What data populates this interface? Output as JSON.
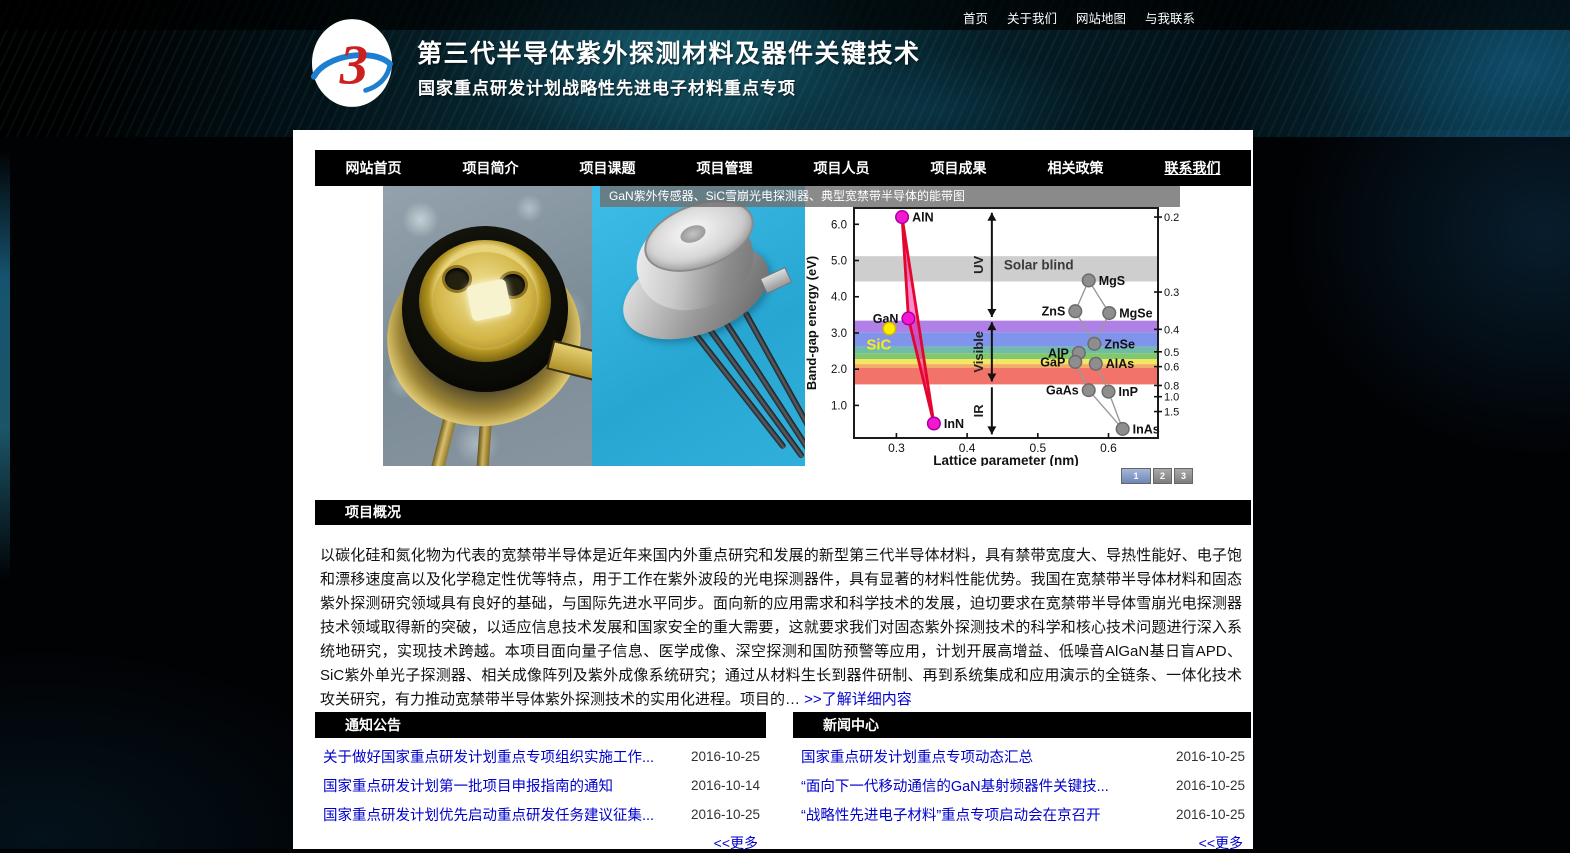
{
  "topbar": {
    "links": [
      "首页",
      "关于我们",
      "网站地图",
      "与我联系"
    ]
  },
  "header": {
    "logo_text": "3",
    "title": "第三代半导体紫外探测材料及器件关键技术",
    "subtitle": "国家重点研发计划战略性先进电子材料重点专项"
  },
  "nav": {
    "items": [
      "网站首页",
      "项目简介",
      "项目课题",
      "项目管理",
      "项目人员",
      "项目成果",
      "相关政策",
      "联系我们"
    ]
  },
  "banner": {
    "caption": "GaN紫外传感器、SiC雪崩光电探测器、典型宽禁带半导体的能带图",
    "pager": [
      "1",
      "2",
      "3"
    ]
  },
  "overview": {
    "heading": "项目概况",
    "paragraph": "以碳化硅和氮化物为代表的宽禁带半导体是近年来国内外重点研究和发展的新型第三代半导体材料，具有禁带宽度大、导热性能好、电子饱和漂移速度高以及化学稳定性优等特点，用于工作在紫外波段的光电探测器件，具有显著的材料性能优势。我国在宽禁带半导体材料和固态紫外探测研究领域具有良好的基础，与国际先进水平同步。面向新的应用需求和科学技术的发展，迫切要求在宽禁带半导体雪崩光电探测器技术领域取得新的突破，以适应信息技术发展和国家安全的重大需要，这就要求我们对固态紫外探测技术的科学和核心技术问题进行深入系统地研究，实现技术跨越。本项目面向量子信息、医学成像、深空探测和国防预警等应用，计划开展高增益、低噪音AlGaN基日盲APD、SiC紫外单光子探测器、相关成像阵列及紫外成像系统研究；通过从材料生长到器件研制、再到系统集成和应用演示的全链条、一体化技术攻关研究，有力推动宽禁带半导体紫外探测技术的实用化进程。项目的… ",
    "more_label": ">>了解详细内容"
  },
  "notices": {
    "heading": "通知公告",
    "items": [
      {
        "title": "关于做好国家重点研发计划重点专项组织实施工作...",
        "date": "2016-10-25"
      },
      {
        "title": "国家重点研发计划第一批项目申报指南的通知",
        "date": "2016-10-14"
      },
      {
        "title": "国家重点研发计划优先启动重点研发任务建议征集...",
        "date": "2016-10-25"
      }
    ],
    "more_label": "<<更多"
  },
  "news": {
    "heading": "新闻中心",
    "items": [
      {
        "title": "国家重点研发计划重点专项动态汇总",
        "date": "2016-10-25"
      },
      {
        "title": "“面向下一代移动通信的GaN基射频器件关键技...",
        "date": "2016-10-25"
      },
      {
        "title": "“战略性先进电子材料”重点专项启动会在京召开",
        "date": "2016-10-25"
      }
    ],
    "more_label": "<<更多"
  },
  "chart_data": {
    "type": "scatter",
    "title": "",
    "xlabel": "Lattice parameter (nm)",
    "ylabel": "Band-gap energy (eV)",
    "xlim": [
      0.24,
      0.67
    ],
    "ylim": [
      0.1,
      6.45
    ],
    "x_ticks": [
      0.3,
      0.4,
      0.5,
      0.6
    ],
    "y_ticks": [
      1.0,
      2.0,
      3.0,
      4.0,
      5.0,
      6.0
    ],
    "right_ticks": [
      {
        "label": "0.2",
        "energy": 6.2
      },
      {
        "label": "0.3",
        "energy": 4.13
      },
      {
        "label": "0.4",
        "energy": 3.1
      },
      {
        "label": "0.5",
        "energy": 2.48
      },
      {
        "label": "0.6",
        "energy": 2.07
      },
      {
        "label": "0.8",
        "energy": 1.55
      },
      {
        "label": "1.0",
        "energy": 1.24
      },
      {
        "label": "1.5",
        "energy": 0.83
      }
    ],
    "bands": [
      {
        "label": "Solar blind band",
        "y0": 4.42,
        "y1": 5.12,
        "color": "#c7c7c7"
      },
      {
        "label": "violet",
        "y0": 3.02,
        "y1": 3.34,
        "color": "#a46fe2"
      },
      {
        "label": "blue",
        "y0": 2.62,
        "y1": 3.02,
        "color": "#6e85e8"
      },
      {
        "label": "cyan",
        "y0": 2.44,
        "y1": 2.62,
        "color": "#5cb39c"
      },
      {
        "label": "green",
        "y0": 2.28,
        "y1": 2.44,
        "color": "#6fbf58"
      },
      {
        "label": "yellow",
        "y0": 2.14,
        "y1": 2.28,
        "color": "#f0e24e"
      },
      {
        "label": "orange",
        "y0": 2.04,
        "y1": 2.14,
        "color": "#f0a44e"
      },
      {
        "label": "red",
        "y0": 1.58,
        "y1": 2.04,
        "color": "#f06055"
      }
    ],
    "series": [
      {
        "name": "nitrides",
        "dot_color": "#f318cf",
        "edge_color": "#a800a0",
        "line_color": "#e3062e",
        "fill_color": "rgba(255,20,160,0.5)",
        "filled_line": true,
        "points": [
          {
            "label": "AlN",
            "x": 0.308,
            "y": 6.2,
            "side": "right"
          },
          {
            "label": "GaN",
            "x": 0.317,
            "y": 3.4,
            "side": "left"
          },
          {
            "label": "InN",
            "x": 0.353,
            "y": 0.5,
            "side": "right"
          }
        ]
      },
      {
        "name": "SiC",
        "dot_color": "#ffee00",
        "edge_color": "#cbb900",
        "points": [
          {
            "label": "SiC",
            "x": 0.29,
            "y": 3.12,
            "side": "below-left",
            "label_color": "#f5ef16",
            "label_size": 15
          }
        ]
      },
      {
        "name": "other-semiconductors",
        "dot_color": "#8e8e8e",
        "edge_color": "#6b6b6b",
        "points": [
          {
            "label": "MgS",
            "x": 0.572,
            "y": 4.45,
            "side": "right"
          },
          {
            "label": "ZnS",
            "x": 0.553,
            "y": 3.6,
            "side": "left"
          },
          {
            "label": "MgSe",
            "x": 0.601,
            "y": 3.55,
            "side": "right"
          },
          {
            "label": "ZnSe",
            "x": 0.58,
            "y": 2.7,
            "side": "right"
          },
          {
            "label": "AlP",
            "x": 0.558,
            "y": 2.45,
            "side": "left"
          },
          {
            "label": "GaP",
            "x": 0.553,
            "y": 2.2,
            "side": "left"
          },
          {
            "label": "AlAs",
            "x": 0.582,
            "y": 2.15,
            "side": "right"
          },
          {
            "label": "GaAs",
            "x": 0.572,
            "y": 1.42,
            "side": "left"
          },
          {
            "label": "InP",
            "x": 0.6,
            "y": 1.38,
            "side": "right"
          },
          {
            "label": "InAs",
            "x": 0.62,
            "y": 0.35,
            "side": "right"
          }
        ]
      }
    ],
    "links": [
      [
        "MgS",
        "ZnS"
      ],
      [
        "MgS",
        "MgSe"
      ],
      [
        "ZnS",
        "ZnSe"
      ],
      [
        "MgSe",
        "ZnSe"
      ],
      [
        "GaP",
        "GaAs"
      ],
      [
        "AlAs",
        "InP"
      ],
      [
        "GaAs",
        "InAs"
      ],
      [
        "InP",
        "InAs"
      ]
    ],
    "divider_x": 0.435,
    "region_arrows": [
      {
        "label": "UV",
        "from": 3.44,
        "to": 6.32,
        "heads": "both"
      },
      {
        "label": "Visible",
        "from": 1.66,
        "to": 3.3,
        "heads": "both"
      },
      {
        "label": "IR",
        "from": 0.2,
        "to": 1.5,
        "heads": "bottom"
      }
    ],
    "annotations": [
      {
        "text": "Solar blind",
        "x": 0.452,
        "y": 4.75
      }
    ]
  }
}
